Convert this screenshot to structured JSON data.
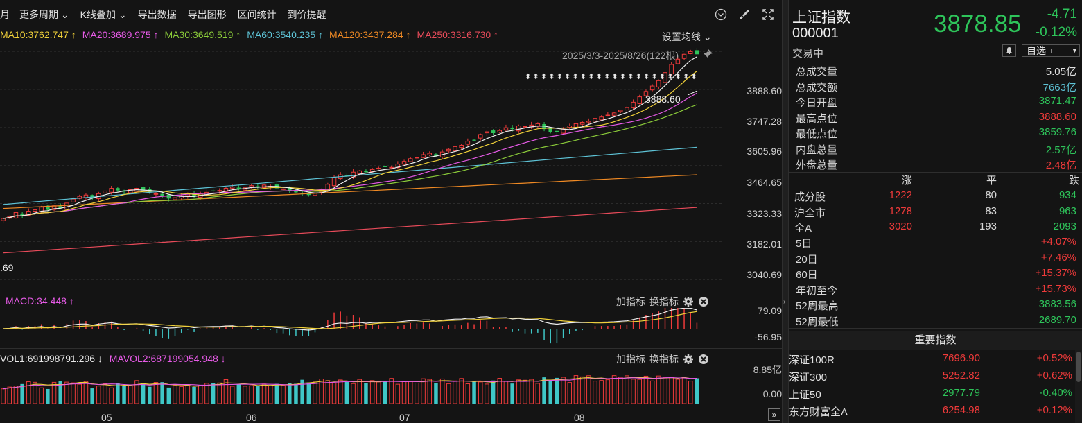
{
  "toolbar": {
    "items": [
      "月",
      "更多周期 ⌄",
      "K线叠加 ⌄",
      "导出数据",
      "导出图形",
      "区间统计",
      "到价提醒"
    ]
  },
  "ma_legend": [
    {
      "label": "MA10:3762.747 ↑",
      "color": "#f2d23a"
    },
    {
      "label": "MA20:3689.975 ↑",
      "color": "#e65ae6"
    },
    {
      "label": "MA30:3649.519 ↑",
      "color": "#8ccd3a"
    },
    {
      "label": "MA60:3540.235 ↑",
      "color": "#5ec3d6"
    },
    {
      "label": "MA120:3437.284 ↑",
      "color": "#f08a24"
    },
    {
      "label": "MA250:3316.730 ↑",
      "color": "#e84b5a"
    }
  ],
  "ma_settings": "设置均线 ⌄",
  "date_range": "2025/3/3-2025/8/26(122根)",
  "high_marker": "3888.60",
  "low_marker": ".69",
  "price_axis": [
    "3888.60",
    "3747.28",
    "3605.96",
    "3464.65",
    "3323.33",
    "3182.01",
    "3040.69"
  ],
  "macd": {
    "title": "MACD:34.448 ↑",
    "axis": [
      "79.09",
      "-56.95"
    ],
    "tools": {
      "add": "加指标",
      "switch": "换指标"
    }
  },
  "vol": {
    "title1": "VOL1:691998791.296 ↓",
    "title2": "MAVOL2:687199054.948 ↓",
    "axis": [
      "8.85亿",
      "0.00"
    ],
    "tools": {
      "add": "加指标",
      "switch": "换指标"
    }
  },
  "x_axis": [
    "05",
    "06",
    "07",
    "08"
  ],
  "colors": {
    "up": "#ee3a3a",
    "down": "#2ec45a",
    "vol_down": "#3fc7c7"
  },
  "quote": {
    "name": "上证指数",
    "code": "000001",
    "price": "3878.85",
    "change": "-4.71",
    "change_pct": "-0.12%",
    "status": "交易中",
    "watch_label": "自选 +"
  },
  "quote_stats": [
    {
      "k": "总成交量",
      "v": "5.05亿",
      "c": "#e0e0e0"
    },
    {
      "k": "总成交额",
      "v": "7663亿",
      "c": "#5ec3d6"
    },
    {
      "k": "今日开盘",
      "v": "3871.47",
      "c": "#2ec45a"
    },
    {
      "k": "最高点位",
      "v": "3888.60",
      "c": "#ee3a3a"
    },
    {
      "k": "最低点位",
      "v": "3859.76",
      "c": "#2ec45a"
    },
    {
      "k": "内盘总量",
      "v": "2.57亿",
      "c": "#2ec45a"
    },
    {
      "k": "外盘总量",
      "v": "2.48亿",
      "c": "#ee3a3a"
    }
  ],
  "breadth_head": {
    "up": "涨",
    "flat": "平",
    "down": "跌"
  },
  "breadth": [
    {
      "name": "成分股",
      "up": "1222",
      "flat": "80",
      "down": "934"
    },
    {
      "name": "沪全市",
      "up": "1278",
      "flat": "83",
      "down": "963"
    },
    {
      "name": "全A",
      "up": "3020",
      "flat": "193",
      "down": "2093"
    }
  ],
  "period_stats": [
    {
      "k": "5日",
      "v": "+4.07%",
      "c": "#ee3a3a"
    },
    {
      "k": "20日",
      "v": "+7.46%",
      "c": "#ee3a3a"
    },
    {
      "k": "60日",
      "v": "+15.37%",
      "c": "#ee3a3a"
    },
    {
      "k": "年初至今",
      "v": "+15.73%",
      "c": "#ee3a3a"
    },
    {
      "k": "52周最高",
      "v": "3883.56",
      "c": "#2ec45a"
    },
    {
      "k": "52周最低",
      "v": "2689.70",
      "c": "#2ec45a"
    }
  ],
  "index_head": "重要指数",
  "indices": [
    {
      "name": "深证100R",
      "price": "7696.90",
      "chg": "+0.52%",
      "dir": "up"
    },
    {
      "name": "深证300",
      "price": "5252.82",
      "chg": "+0.62%",
      "dir": "up"
    },
    {
      "name": "上证50",
      "price": "2977.79",
      "chg": "-0.40%",
      "dir": "down"
    },
    {
      "name": "东方财富全A",
      "price": "6254.98",
      "chg": "+0.12%",
      "dir": "up"
    }
  ],
  "chart_data": {
    "type": "candlestick",
    "y_range": [
      3000,
      3920
    ],
    "closes_approx": [
      3268,
      3275,
      3290,
      3280,
      3295,
      3300,
      3310,
      3300,
      3315,
      3305,
      3325,
      3340,
      3350,
      3355,
      3345,
      3360,
      3370,
      3380,
      3372,
      3368,
      3375,
      3380,
      3372,
      3365,
      3360,
      3350,
      3342,
      3345,
      3352,
      3358,
      3350,
      3360,
      3365,
      3370,
      3372,
      3380,
      3385,
      3378,
      3382,
      3390,
      3385,
      3392,
      3388,
      3380,
      3378,
      3370,
      3365,
      3360,
      3355,
      3362,
      3375,
      3395,
      3420,
      3430,
      3428,
      3440,
      3445,
      3440,
      3450,
      3455,
      3460,
      3458,
      3470,
      3480,
      3490,
      3495,
      3505,
      3510,
      3500,
      3515,
      3525,
      3535,
      3540,
      3555,
      3560,
      3580,
      3590,
      3585,
      3595,
      3605,
      3600,
      3612,
      3610,
      3615,
      3620,
      3600,
      3590,
      3588,
      3600,
      3612,
      3620,
      3625,
      3630,
      3640,
      3645,
      3652,
      3660,
      3670,
      3680,
      3700,
      3720,
      3740,
      3760,
      3780,
      3810,
      3840,
      3860,
      3878,
      3888,
      3878
    ]
  }
}
